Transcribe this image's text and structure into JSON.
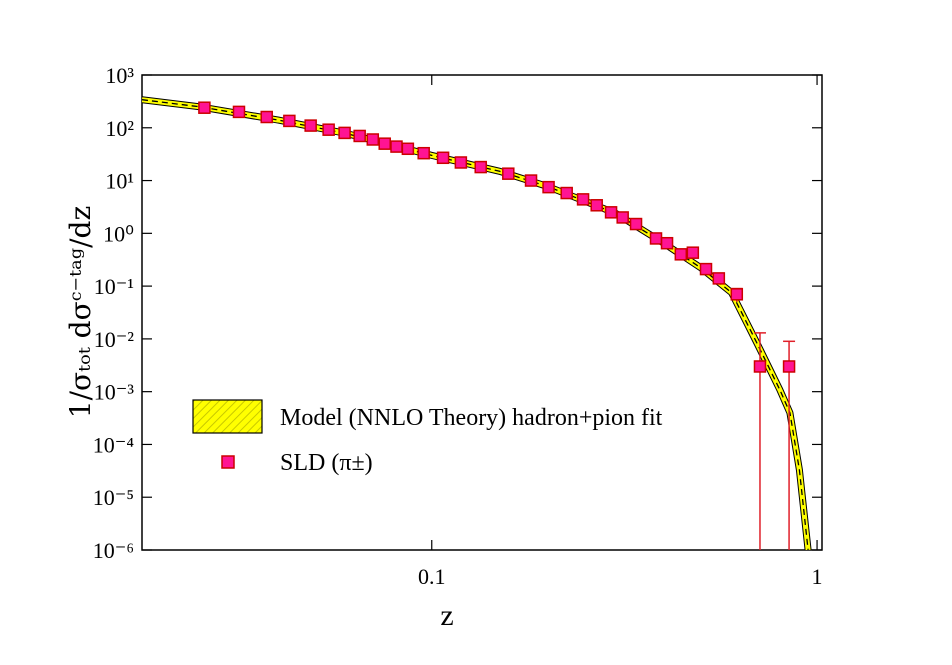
{
  "chart_data": {
    "type": "scatter",
    "xlabel": "z",
    "ylabel": "1/σₜₒₜ dσᶜ⁻ᵗᵃᵍ/dz",
    "xscale": "log",
    "yscale": "log",
    "xlim": [
      0.0177,
      1.03
    ],
    "ylim": [
      1e-06,
      1000
    ],
    "xticks": [
      0.1,
      1
    ],
    "yticks": [
      {
        "value": 1000,
        "label": "10³"
      },
      {
        "value": 100,
        "label": "10²"
      },
      {
        "value": 10,
        "label": "10¹"
      },
      {
        "value": 1,
        "label": "10⁰"
      },
      {
        "value": 0.1,
        "label": "10⁻¹"
      },
      {
        "value": 0.01,
        "label": "10⁻²"
      },
      {
        "value": 0.001,
        "label": "10⁻³"
      },
      {
        "value": 0.0001,
        "label": "10⁻⁴"
      },
      {
        "value": 1e-05,
        "label": "10⁻⁵"
      },
      {
        "value": 1e-06,
        "label": "10⁻⁶"
      }
    ],
    "legend": "lower left",
    "series": [
      {
        "name": "Model (NNLO Theory) hadron+pion fit",
        "type": "line",
        "color": "#ffff00",
        "x": [
          0.0177,
          0.025,
          0.04,
          0.06,
          0.1,
          0.15,
          0.2,
          0.3,
          0.4,
          0.5,
          0.6,
          0.7,
          0.8,
          0.85,
          0.9,
          0.948
        ],
        "values": [
          340,
          250,
          140,
          78,
          30,
          15,
          7.7,
          2.4,
          0.65,
          0.22,
          0.075,
          0.008,
          0.0011,
          0.0004,
          3.3e-05,
          1e-06
        ]
      },
      {
        "name": "SLD (π±)",
        "type": "scatter",
        "color": "#ff1493",
        "x": [
          0.0257,
          0.0316,
          0.0373,
          0.0427,
          0.0485,
          0.054,
          0.0594,
          0.065,
          0.0703,
          0.0755,
          0.081,
          0.0867,
          0.0953,
          0.107,
          0.119,
          0.134,
          0.158,
          0.181,
          0.201,
          0.224,
          0.247,
          0.268,
          0.292,
          0.313,
          0.339,
          0.382,
          0.408,
          0.443,
          0.476,
          0.515,
          0.556,
          0.619,
          0.711,
          0.846
        ],
        "values": [
          240,
          200,
          160,
          135,
          110,
          92,
          80,
          70,
          60,
          50,
          44,
          40,
          33,
          27,
          22,
          18,
          13.5,
          10,
          7.5,
          5.8,
          4.4,
          3.4,
          2.5,
          2.0,
          1.5,
          0.8,
          0.65,
          0.4,
          0.43,
          0.21,
          0.14,
          0.07,
          0.003,
          0.003
        ],
        "errors": [
          null,
          null,
          null,
          null,
          null,
          null,
          null,
          null,
          null,
          null,
          null,
          null,
          null,
          null,
          null,
          null,
          null,
          null,
          null,
          null,
          null,
          null,
          null,
          null,
          null,
          null,
          null,
          null,
          null,
          null,
          null,
          0.02,
          0.01,
          0.006
        ]
      }
    ]
  }
}
